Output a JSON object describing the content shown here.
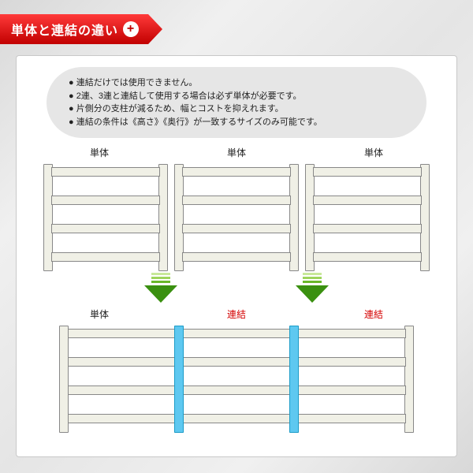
{
  "header": {
    "title": "単体と連結の違い",
    "badge_bg": "linear-gradient(to bottom, #ff3a3a 0%, #c10000 100%)",
    "plus_color": "#c10000"
  },
  "notes": [
    "● 連結だけでは使用できません。",
    "● 2連、3連と連結して使用する場合は必ず単体が必要です。",
    "● 片側分の支柱が減るため、幅とコストを抑えれます。",
    "● 連結の条件は《高さ》《奥行》が一致するサイズのみ可能です。"
  ],
  "labels": {
    "tantai": "単体",
    "renketsu": "連結",
    "tantai_color": "#222222",
    "renketsu_color": "#d40000"
  },
  "shelf": {
    "frame_color": "#f0f0e6",
    "border_color": "#888888",
    "highlight_color": "#5ec8f0",
    "highlight_border": "#1a9cc8",
    "board_positions": [
      6,
      42,
      78,
      114
    ]
  },
  "arrow": {
    "stripe_colors": [
      "#c8e89a",
      "#9ed45c",
      "#6ab82a"
    ],
    "head_color": "#3a9010"
  }
}
